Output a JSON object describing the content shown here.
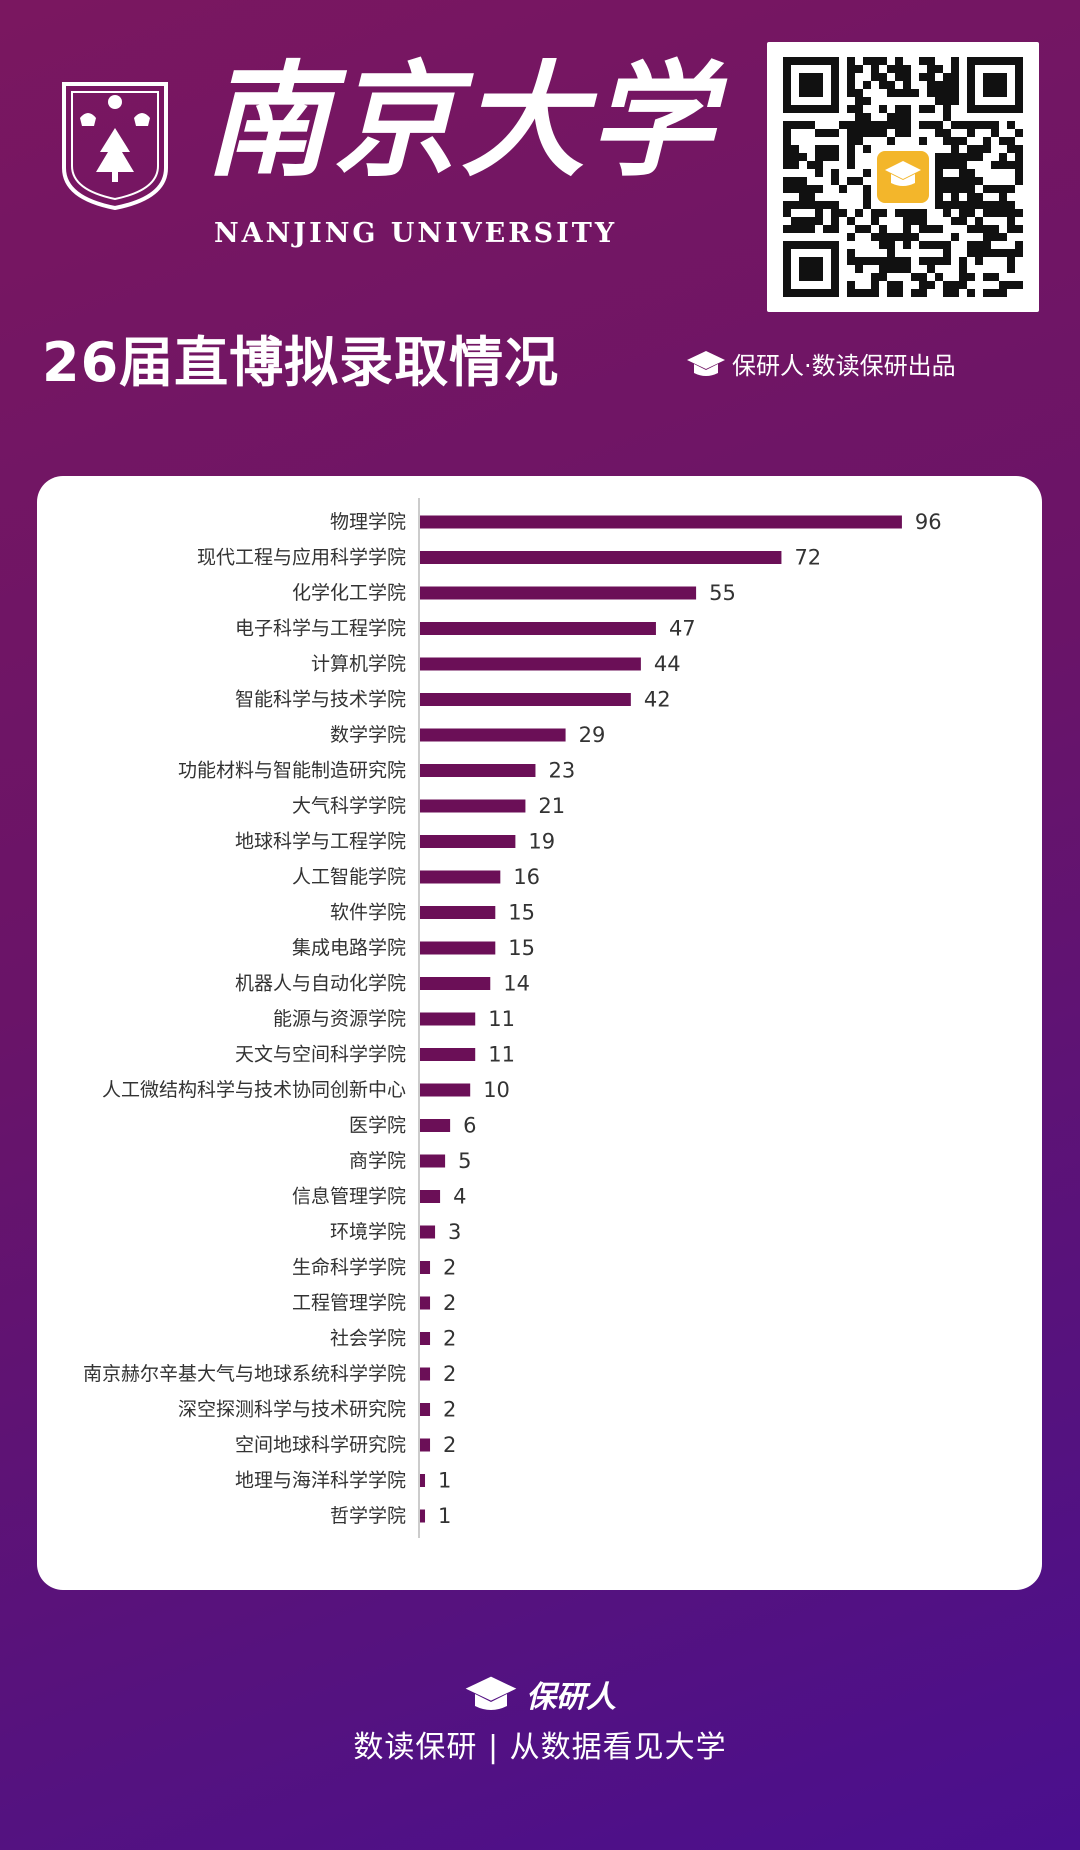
{
  "header": {
    "logo_cn": "南京大学",
    "logo_en": "NANJING UNIVERSITY",
    "headline": "26届直博拟录取情况",
    "credit": "保研人·数读保研出品"
  },
  "icons": {
    "seal": "university-seal-icon",
    "qr": "qr-code-icon",
    "brand": "graduation-cap-icon"
  },
  "colors": {
    "bar": "#6b0f57",
    "background_top": "#7a1760",
    "background_bottom": "#4a0f8e",
    "card": "#ffffff"
  },
  "chart_data": {
    "type": "bar",
    "orientation": "horizontal",
    "categories": [
      "物理学院",
      "现代工程与应用科学学院",
      "化学化工学院",
      "电子科学与工程学院",
      "计算机学院",
      "智能科学与技术学院",
      "数学学院",
      "功能材料与智能制造研究院",
      "大气科学学院",
      "地球科学与工程学院",
      "人工智能学院",
      "软件学院",
      "集成电路学院",
      "机器人与自动化学院",
      "能源与资源学院",
      "天文与空间科学学院",
      "人工微结构科学与技术协同创新中心",
      "医学院",
      "商学院",
      "信息管理学院",
      "环境学院",
      "生命科学学院",
      "工程管理学院",
      "社会学院",
      "南京赫尔辛基大气与地球系统科学学院",
      "深空探测科学与技术研究院",
      "空间地球科学研究院",
      "地理与海洋科学学院",
      "哲学学院"
    ],
    "values": [
      96,
      72,
      55,
      47,
      44,
      42,
      29,
      23,
      21,
      19,
      16,
      15,
      15,
      14,
      11,
      11,
      10,
      6,
      5,
      4,
      3,
      2,
      2,
      2,
      2,
      2,
      2,
      1,
      1
    ],
    "xlim": [
      0,
      100
    ],
    "data_labels": true,
    "grid": false,
    "legend": "none"
  },
  "footer": {
    "brand": "保研人",
    "tagline": "数读保研 | 从数据看见大学"
  }
}
